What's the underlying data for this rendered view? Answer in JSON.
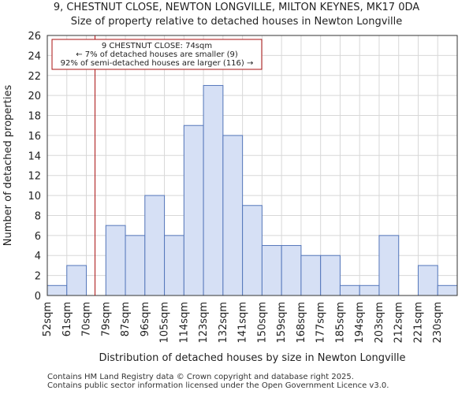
{
  "header": {
    "title": "9, CHESTNUT CLOSE, NEWTON LONGVILLE, MILTON KEYNES, MK17 0DA",
    "subtitle": "Size of property relative to detached houses in Newton Longville"
  },
  "footer": {
    "line1": "Contains HM Land Registry data © Crown copyright and database right 2025.",
    "line2": "Contains public sector information licensed under the Open Government Licence v3.0."
  },
  "colors": {
    "bar_fill": "#d6e0f5",
    "bar_edge": "#5577bb",
    "marker": "#aa1111",
    "grid": "#d8d8d8"
  },
  "chart_data": {
    "type": "bar",
    "title": "9, CHESTNUT CLOSE, NEWTON LONGVILLE, MILTON KEYNES, MK17 0DA",
    "subtitle": "Size of property relative to detached houses in Newton Longville",
    "xlabel": "Distribution of detached houses by size in Newton Longville",
    "ylabel": "Number of detached properties",
    "categories": [
      "52sqm",
      "61sqm",
      "70sqm",
      "79sqm",
      "87sqm",
      "96sqm",
      "105sqm",
      "114sqm",
      "123sqm",
      "132sqm",
      "141sqm",
      "150sqm",
      "159sqm",
      "168sqm",
      "177sqm",
      "185sqm",
      "194sqm",
      "203sqm",
      "212sqm",
      "221sqm",
      "230sqm"
    ],
    "bin_edges": [
      52,
      61,
      70,
      79,
      87,
      96,
      105,
      114,
      123,
      132,
      141,
      150,
      159,
      168,
      177,
      185,
      194,
      203,
      212,
      221,
      230,
      239
    ],
    "values": [
      1,
      3,
      0,
      7,
      6,
      10,
      6,
      17,
      21,
      16,
      9,
      5,
      5,
      4,
      4,
      1,
      1,
      6,
      0,
      3,
      1
    ],
    "ylim": [
      0,
      26
    ],
    "yticks": [
      0,
      2,
      4,
      6,
      8,
      10,
      12,
      14,
      16,
      18,
      20,
      22,
      24,
      26
    ],
    "grid": true,
    "marker": {
      "value": 74,
      "lines": [
        "9 CHESTNUT CLOSE: 74sqm",
        "← 7% of detached houses are smaller (9)",
        "92% of semi-detached houses are larger (116) →"
      ]
    }
  }
}
